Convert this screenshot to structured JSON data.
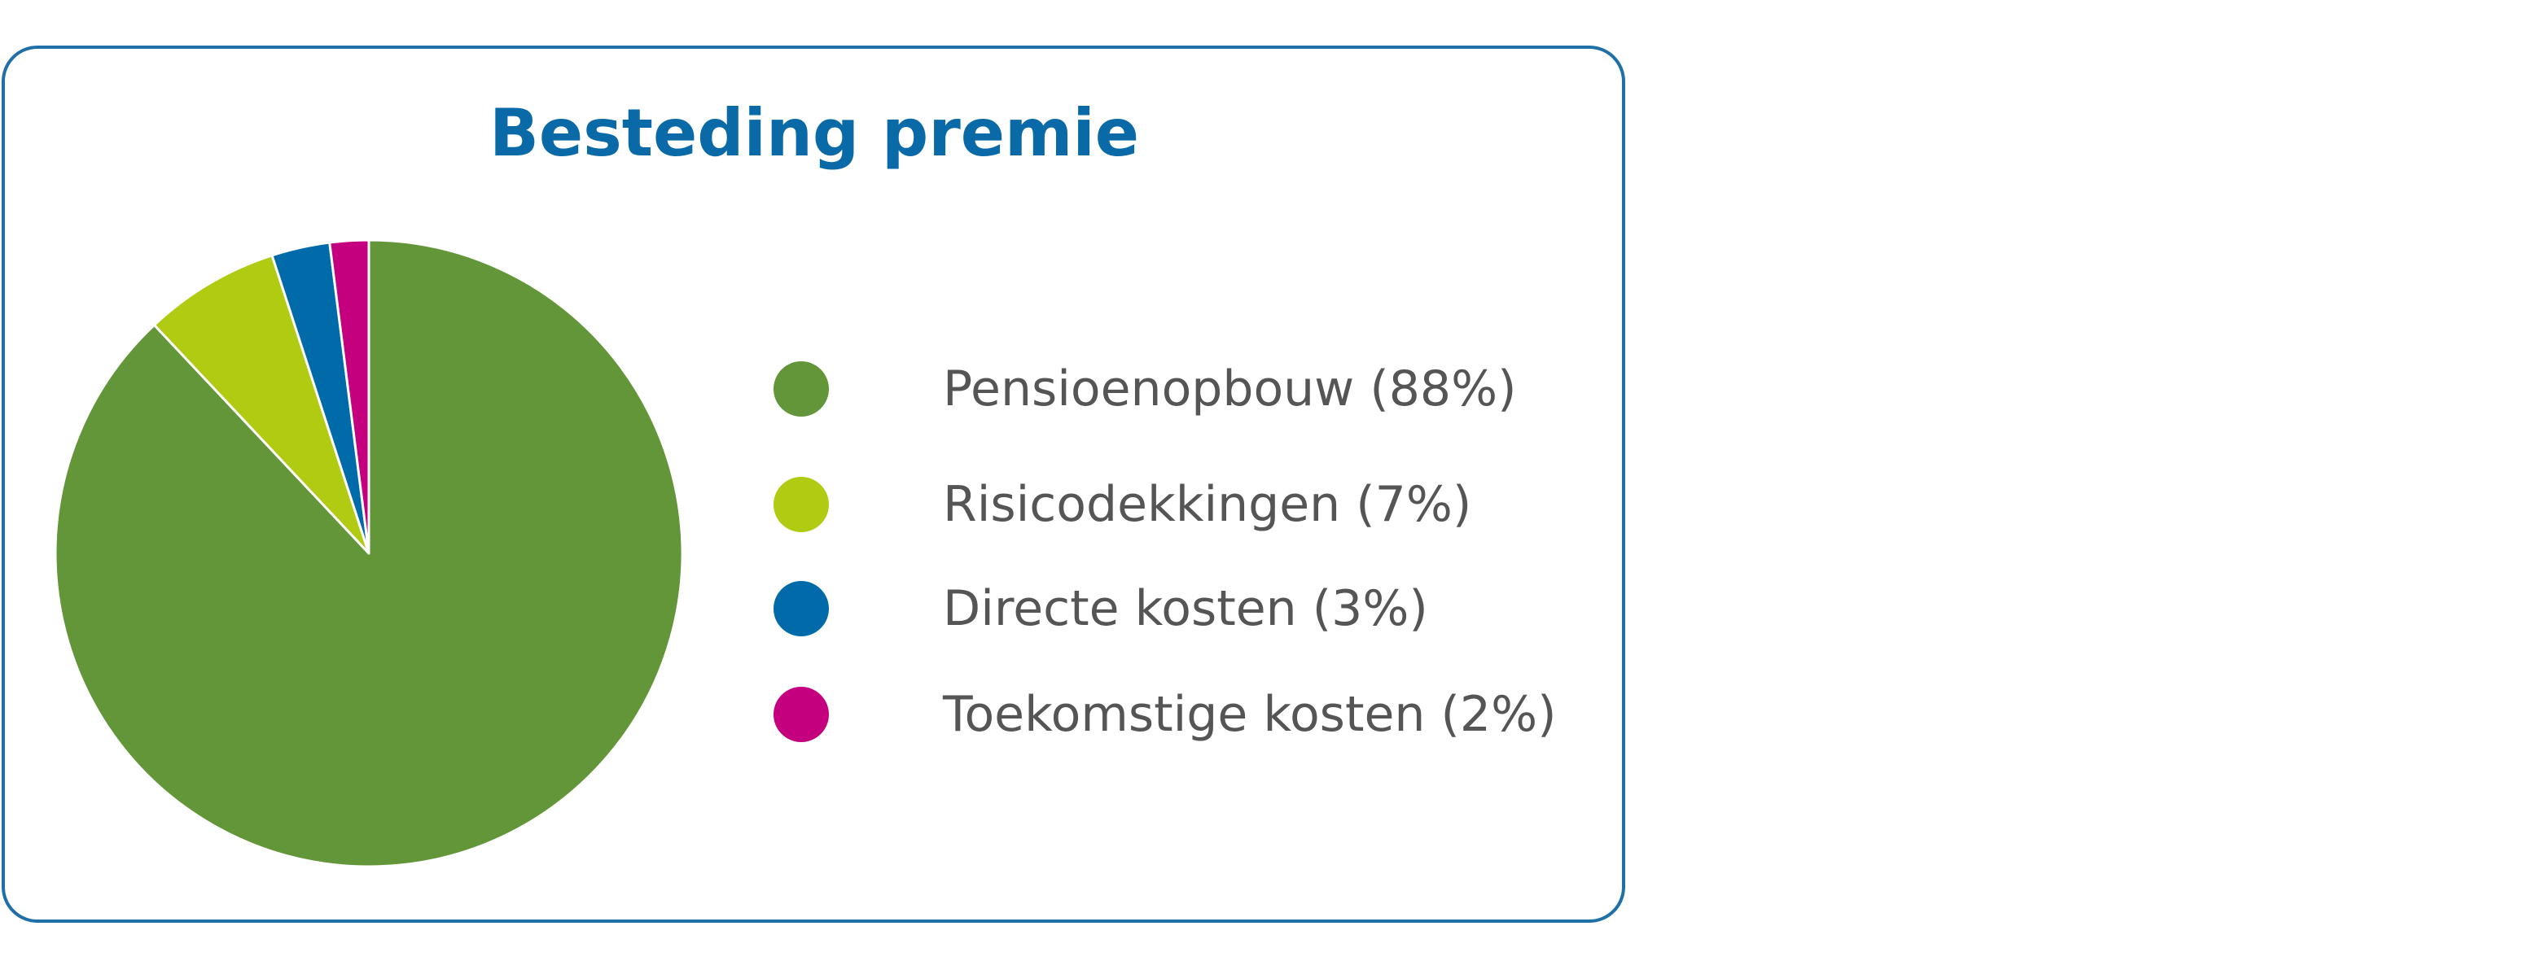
{
  "chart_data": {
    "type": "pie",
    "title": "Besteding premie",
    "slices": [
      {
        "label": "Pensioenopbouw (88%)",
        "value": 88,
        "color": "#629639"
      },
      {
        "label": "Risicodekkingen (7%)",
        "value": 7,
        "color": "#b0cb12"
      },
      {
        "label": "Directe kosten (3%)",
        "value": 3,
        "color": "#016baa"
      },
      {
        "label": "Toekomstige kosten (2%)",
        "value": 2,
        "color": "#c5007e"
      }
    ],
    "start": "12 o'clock",
    "direction": "clockwise",
    "legend_position": "right"
  }
}
